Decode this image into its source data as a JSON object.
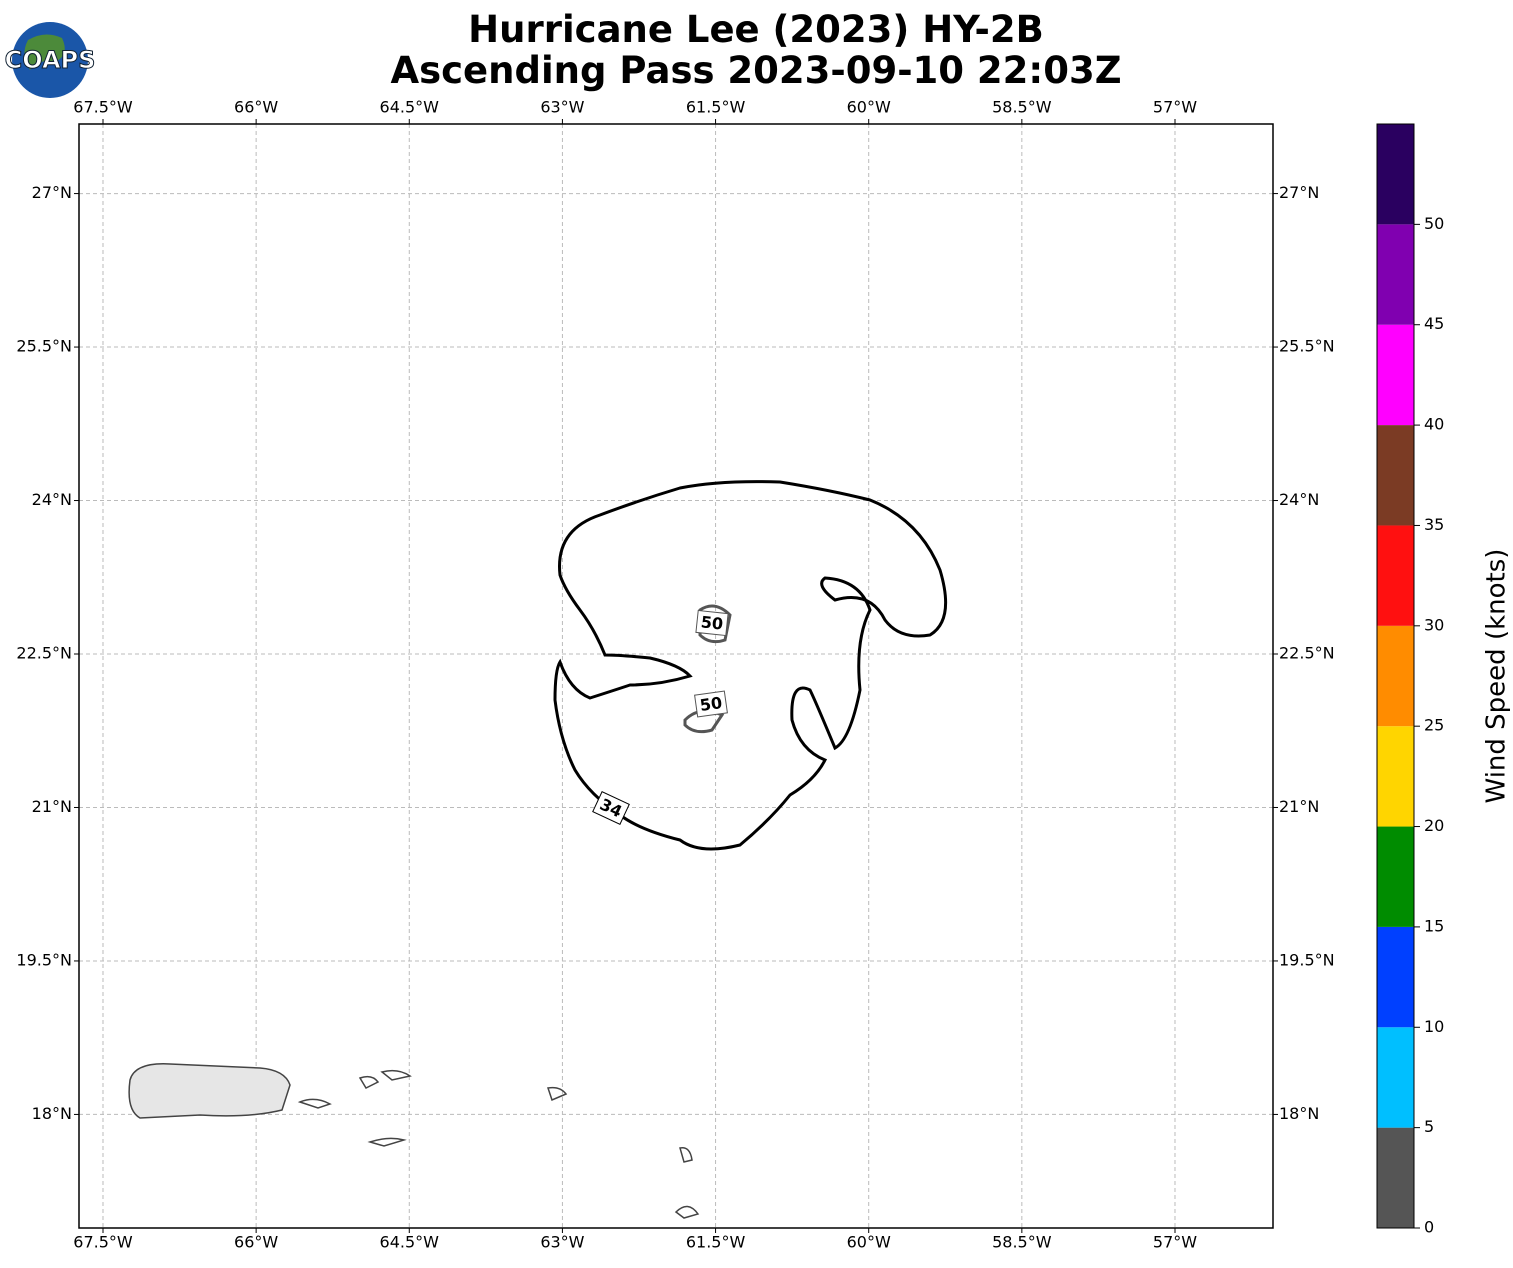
{
  "chart_data": {
    "type": "wind-map",
    "logo": "COAPS",
    "title": [
      "Hurricane Lee (2023) HY-2B",
      "Ascending Pass 2023-09-10 22:03Z"
    ],
    "xlim": [
      -67.735,
      -56.04
    ],
    "ylim": [
      16.89,
      27.68
    ],
    "xticks": [
      {
        "value": -67.5,
        "label": "67.5°W"
      },
      {
        "value": -66,
        "label": "66°W"
      },
      {
        "value": -64.5,
        "label": "64.5°W"
      },
      {
        "value": -63,
        "label": "63°W"
      },
      {
        "value": -61.5,
        "label": "61.5°W"
      },
      {
        "value": -60,
        "label": "60°W"
      },
      {
        "value": -58.5,
        "label": "58.5°W"
      },
      {
        "value": -57,
        "label": "57°W"
      }
    ],
    "yticks": [
      {
        "value": 18,
        "label": "18°N"
      },
      {
        "value": 19.5,
        "label": "19.5°N"
      },
      {
        "value": 21,
        "label": "21°N"
      },
      {
        "value": 22.5,
        "label": "22.5°N"
      },
      {
        "value": 24,
        "label": "24°N"
      },
      {
        "value": 25.5,
        "label": "25.5°N"
      },
      {
        "value": 27,
        "label": "27°N"
      }
    ],
    "grid": true,
    "contour_labels": [
      50,
      50,
      34
    ],
    "colorbar": {
      "label": "Wind Speed (knots)",
      "lim": [
        0,
        55
      ],
      "ticks": [
        0,
        5,
        10,
        15,
        20,
        25,
        30,
        35,
        40,
        45,
        50
      ],
      "colors": [
        "#555555",
        "#00bfff",
        "#0040ff",
        "#008c00",
        "#ffd500",
        "#ff8c00",
        "#ff1010",
        "#7b3b24",
        "#ff00ff",
        "#8000b0",
        "#2a0060"
      ]
    }
  }
}
